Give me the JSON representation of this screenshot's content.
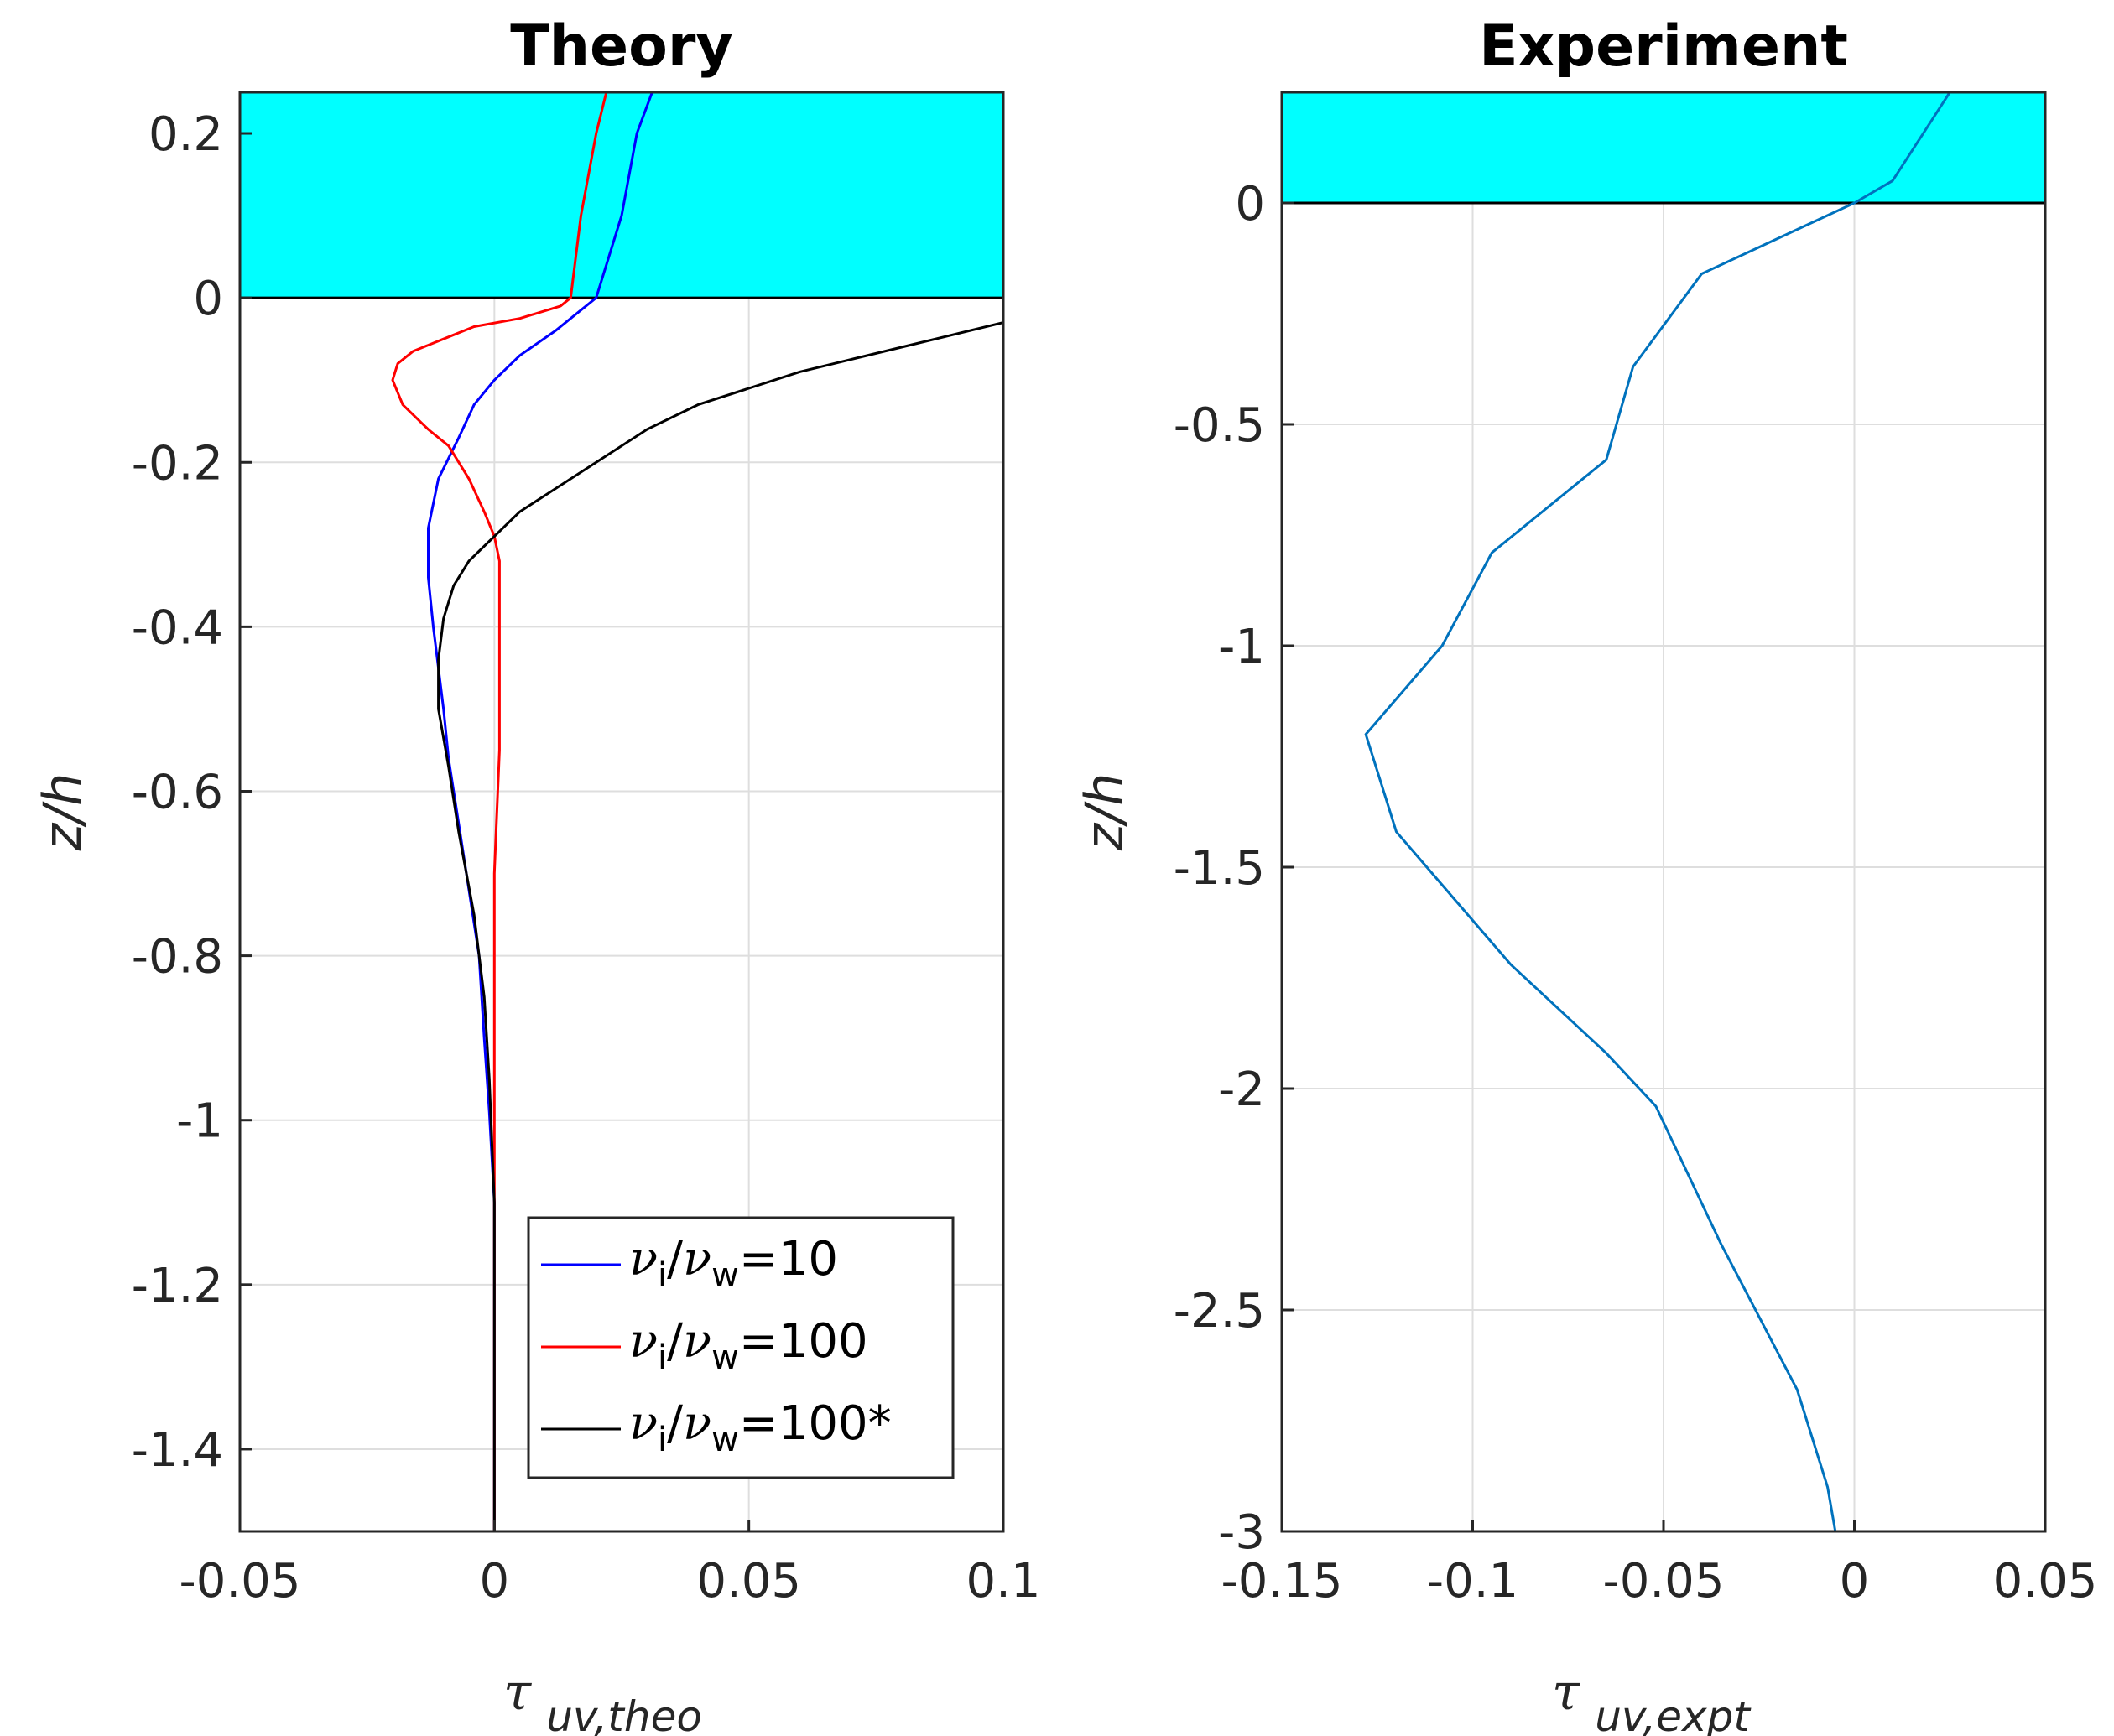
{
  "chart_data": [
    {
      "type": "line",
      "title": "Theory",
      "xlabel": "τ",
      "xlabel_sub": "uv,theo",
      "ylabel": "z/h",
      "xlim": [
        -0.05,
        0.1
      ],
      "ylim": [
        -1.5,
        0.25
      ],
      "xticks": [
        -0.05,
        0,
        0.05,
        0.1
      ],
      "xtick_labels": [
        "-0.05",
        "0",
        "0.05",
        "0.1"
      ],
      "yticks": [
        0.2,
        0,
        -0.2,
        -0.4,
        -0.6,
        -0.8,
        -1,
        -1.2,
        -1.4
      ],
      "ytick_labels": [
        "0.2",
        "0",
        "-0.2",
        "-0.4",
        "-0.6",
        "-0.8",
        "-1",
        "-1.2",
        "-1.4"
      ],
      "grid": true,
      "shaded_region": {
        "y_from": 0,
        "y_to": 0.25,
        "color": "#00ffff"
      },
      "legend": {
        "placement": "bottom-right",
        "entries": [
          {
            "greek": "ν",
            "sub1": "i",
            "slash": "/",
            "sub2": "w",
            "value": "=10",
            "color": "#0000ff"
          },
          {
            "greek": "ν",
            "sub1": "i",
            "slash": "/",
            "sub2": "w",
            "value": "=100",
            "color": "#ff0000"
          },
          {
            "greek": "ν",
            "sub1": "i",
            "slash": "/",
            "sub2": "w",
            "value": "=100*",
            "color": "#000000"
          }
        ]
      },
      "series": [
        {
          "name": "νi/νw=10",
          "color": "#0000ff",
          "points": [
            [
              0.031,
              0.25
            ],
            [
              0.028,
              0.2
            ],
            [
              0.025,
              0.1
            ],
            [
              0.02,
              0.0
            ],
            [
              0.018,
              -0.01
            ],
            [
              0.012,
              -0.04
            ],
            [
              0.005,
              -0.07
            ],
            [
              0.0,
              -0.1
            ],
            [
              -0.004,
              -0.13
            ],
            [
              -0.007,
              -0.17
            ],
            [
              -0.011,
              -0.22
            ],
            [
              -0.013,
              -0.28
            ],
            [
              -0.013,
              -0.34
            ],
            [
              -0.012,
              -0.4
            ],
            [
              -0.011,
              -0.45
            ],
            [
              -0.01,
              -0.5
            ],
            [
              -0.009,
              -0.56
            ],
            [
              -0.007,
              -0.64
            ],
            [
              -0.005,
              -0.72
            ],
            [
              -0.003,
              -0.8
            ],
            [
              -0.002,
              -0.9
            ],
            [
              -0.001,
              -0.99
            ],
            [
              0.0,
              -1.1
            ],
            [
              0.0,
              -1.3
            ],
            [
              0.0,
              -1.5
            ]
          ]
        },
        {
          "name": "νi/νw=100",
          "color": "#ff0000",
          "points": [
            [
              0.022,
              0.25
            ],
            [
              0.02,
              0.2
            ],
            [
              0.017,
              0.1
            ],
            [
              0.015,
              0.0
            ],
            [
              0.013,
              -0.01
            ],
            [
              0.005,
              -0.025
            ],
            [
              -0.004,
              -0.035
            ],
            [
              -0.01,
              -0.05
            ],
            [
              -0.016,
              -0.065
            ],
            [
              -0.019,
              -0.08
            ],
            [
              -0.02,
              -0.1
            ],
            [
              -0.018,
              -0.13
            ],
            [
              -0.013,
              -0.16
            ],
            [
              -0.009,
              -0.18
            ],
            [
              -0.007,
              -0.2
            ],
            [
              -0.005,
              -0.22
            ],
            [
              -0.002,
              -0.26
            ],
            [
              0.0,
              -0.29
            ],
            [
              0.001,
              -0.32
            ],
            [
              0.001,
              -0.36
            ],
            [
              0.001,
              -0.45
            ],
            [
              0.001,
              -0.55
            ],
            [
              0.0,
              -0.7
            ],
            [
              0.0,
              -1.0
            ],
            [
              0.0,
              -1.5
            ]
          ]
        },
        {
          "name": "νi/νw=100*",
          "color": "#000000",
          "points": [
            [
              0.1,
              -0.03
            ],
            [
              0.09,
              -0.045
            ],
            [
              0.08,
              -0.06
            ],
            [
              0.07,
              -0.075
            ],
            [
              0.06,
              -0.09
            ],
            [
              0.05,
              -0.11
            ],
            [
              0.04,
              -0.13
            ],
            [
              0.03,
              -0.16
            ],
            [
              0.02,
              -0.2
            ],
            [
              0.01,
              -0.24
            ],
            [
              0.005,
              -0.26
            ],
            [
              0.0,
              -0.29
            ],
            [
              -0.005,
              -0.32
            ],
            [
              -0.008,
              -0.35
            ],
            [
              -0.01,
              -0.39
            ],
            [
              -0.011,
              -0.44
            ],
            [
              -0.011,
              -0.5
            ],
            [
              -0.009,
              -0.57
            ],
            [
              -0.007,
              -0.65
            ],
            [
              -0.004,
              -0.75
            ],
            [
              -0.002,
              -0.85
            ],
            [
              -0.001,
              -0.95
            ],
            [
              0.0,
              -1.1
            ],
            [
              0.0,
              -1.5
            ]
          ]
        }
      ]
    },
    {
      "type": "line",
      "title": "Experiment",
      "xlabel": "τ",
      "xlabel_sub": "uv,expt",
      "ylabel": "z/h",
      "xlim": [
        -0.15,
        0.05
      ],
      "ylim": [
        -3,
        0.25
      ],
      "xticks": [
        -0.15,
        -0.1,
        -0.05,
        0,
        0.05
      ],
      "xtick_labels": [
        "-0.15",
        "-0.1",
        "-0.05",
        "0",
        "0.05"
      ],
      "yticks": [
        0,
        -0.5,
        -1,
        -1.5,
        -2,
        -2.5,
        -3
      ],
      "ytick_labels": [
        "0",
        "-0.5",
        "-1",
        "-1.5",
        "-2",
        "-2.5",
        "-3"
      ],
      "grid": true,
      "shaded_region": {
        "y_from": 0,
        "y_to": 0.25,
        "color": "#00ffff"
      },
      "series": [
        {
          "name": "experiment",
          "color": "#0072bd",
          "points": [
            [
              0.025,
              0.25
            ],
            [
              0.01,
              0.05
            ],
            [
              0.0,
              0.0
            ],
            [
              -0.04,
              -0.16
            ],
            [
              -0.058,
              -0.37
            ],
            [
              -0.065,
              -0.58
            ],
            [
              -0.095,
              -0.79
            ],
            [
              -0.108,
              -1.0
            ],
            [
              -0.128,
              -1.2
            ],
            [
              -0.12,
              -1.42
            ],
            [
              -0.09,
              -1.72
            ],
            [
              -0.065,
              -1.92
            ],
            [
              -0.052,
              -2.04
            ],
            [
              -0.035,
              -2.35
            ],
            [
              -0.015,
              -2.68
            ],
            [
              -0.007,
              -2.9
            ],
            [
              -0.005,
              -3.0
            ]
          ]
        }
      ]
    }
  ]
}
